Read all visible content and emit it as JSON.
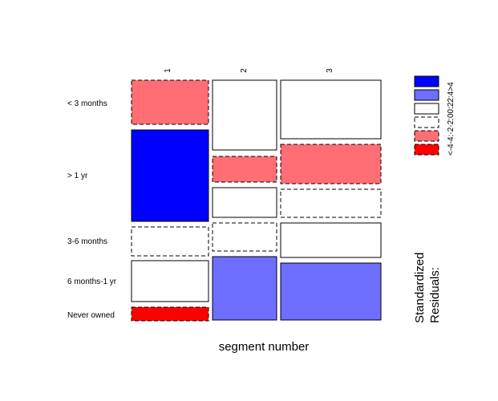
{
  "chart_data": {
    "type": "mosaic",
    "title": "",
    "xlabel": "segment number",
    "ylabel": "",
    "columns": [
      "1",
      "2",
      "3"
    ],
    "rows": [
      "< 3 months",
      "> 1 yr",
      "3-6 months",
      "6 months-1 yr",
      "Never owned"
    ],
    "cells": [
      {
        "col": "1",
        "row": "< 3 months",
        "residual_class": "-4:-2"
      },
      {
        "col": "1",
        "row": "> 1 yr",
        "residual_class": ">4"
      },
      {
        "col": "1",
        "row": "3-6 months",
        "residual_class": "-2:0"
      },
      {
        "col": "1",
        "row": "6 months-1 yr",
        "residual_class": "0:2"
      },
      {
        "col": "1",
        "row": "Never owned",
        "residual_class": "<-4"
      },
      {
        "col": "2",
        "row": "< 3 months",
        "residual_class": "0:2"
      },
      {
        "col": "2",
        "row": "> 1 yr (upper)",
        "residual_class": "-4:-2"
      },
      {
        "col": "2",
        "row": "> 1 yr (lower)",
        "residual_class": "0:2"
      },
      {
        "col": "2",
        "row": "3-6 months",
        "residual_class": "-2:0"
      },
      {
        "col": "2",
        "row": "6 months-1 yr",
        "residual_class": "2:4"
      },
      {
        "col": "3",
        "row": "< 3 months",
        "residual_class": "0:2"
      },
      {
        "col": "3",
        "row": "> 1 yr (upper)",
        "residual_class": "-4:-2"
      },
      {
        "col": "3",
        "row": "> 1 yr (lower)",
        "residual_class": "-2:0"
      },
      {
        "col": "3",
        "row": "3-6 months",
        "residual_class": "0:2"
      },
      {
        "col": "3",
        "row": "6 months-1 yr",
        "residual_class": "2:4"
      }
    ],
    "legend": {
      "title_line1": "Standardized",
      "title_line2": "Residuals:",
      "labels_text": "<-4-4:-2-2:00:22:4>4",
      "classes": [
        ">4",
        "2:4",
        "0:2",
        "-2:0",
        "-4:-2",
        "<-4"
      ],
      "placement": "right"
    },
    "colors": {
      ">4": "#0000ff",
      "2:4": "#6e6eff",
      "0:2": "#ffffff",
      "-2:0": "#ffffff",
      "-4:-2": "#ff6e74",
      "<-4": "#ff0000"
    }
  }
}
